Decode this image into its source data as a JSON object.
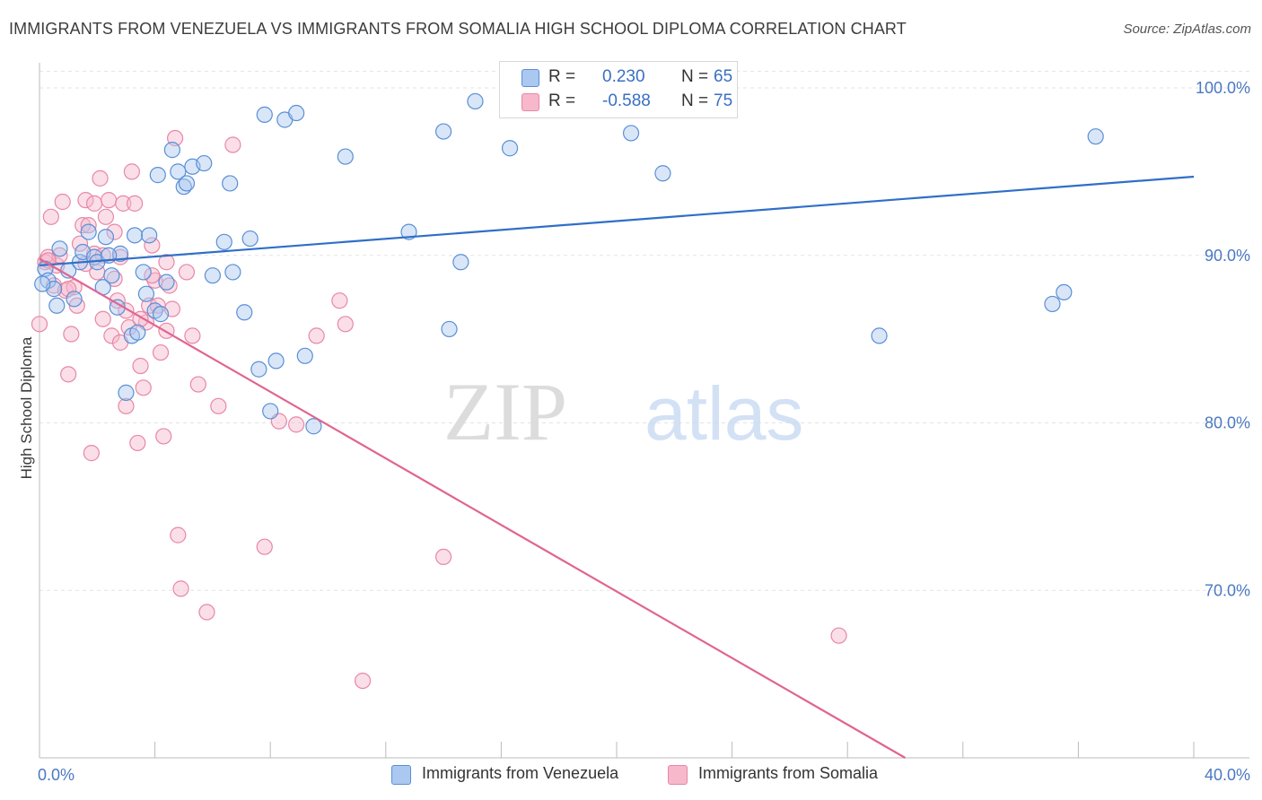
{
  "title": "IMMIGRANTS FROM VENEZUELA VS IMMIGRANTS FROM SOMALIA HIGH SCHOOL DIPLOMA CORRELATION CHART",
  "source": "Source: ZipAtlas.com",
  "watermark": {
    "zip": "ZIP",
    "atlas": "atlas"
  },
  "legend": {
    "rows": [
      {
        "r_label": "R =",
        "r_value": "0.230",
        "n_label": "N =",
        "n_value": "65"
      },
      {
        "r_label": "R =",
        "r_value": "-0.588",
        "n_label": "N =",
        "n_value": "75"
      }
    ]
  },
  "colors": {
    "venezuela_fill": "#aac8f0",
    "venezuela_stroke": "#5a8fd6",
    "venezuela_line": "#2f6fc7",
    "somalia_fill": "#f7b8cc",
    "somalia_stroke": "#e887a6",
    "somalia_line": "#e06592",
    "tick": "#4a78c2",
    "grid": "#e3e3e3"
  },
  "chart_data": {
    "type": "scatter",
    "title": "IMMIGRANTS FROM VENEZUELA VS IMMIGRANTS FROM SOMALIA HIGH SCHOOL DIPLOMA CORRELATION CHART",
    "xlabel": "",
    "ylabel": "High School Diploma",
    "xlim": [
      0,
      40
    ],
    "ylim": [
      60,
      101.5
    ],
    "x_tick_labels": [
      "0.0%",
      "40.0%"
    ],
    "y_ticks": [
      70,
      80,
      90,
      100
    ],
    "y_tick_labels": [
      "70.0%",
      "80.0%",
      "90.0%",
      "100.0%"
    ],
    "grid": true,
    "legend_position": "top-center",
    "series": [
      {
        "name": "Immigrants from Venezuela",
        "r": 0.23,
        "n": 65,
        "trend": {
          "x": [
            0,
            40
          ],
          "y": [
            89.4,
            94.7
          ]
        },
        "points": [
          [
            0.2,
            89.2
          ],
          [
            0.3,
            88.5
          ],
          [
            0.5,
            88.0
          ],
          [
            0.6,
            87.0
          ],
          [
            0.7,
            90.4
          ],
          [
            1.0,
            89.1
          ],
          [
            1.2,
            87.4
          ],
          [
            1.4,
            89.6
          ],
          [
            1.5,
            90.2
          ],
          [
            1.7,
            91.4
          ],
          [
            1.9,
            89.9
          ],
          [
            2.0,
            89.6
          ],
          [
            2.2,
            88.1
          ],
          [
            2.3,
            91.1
          ],
          [
            2.5,
            88.8
          ],
          [
            2.7,
            86.9
          ],
          [
            2.8,
            90.1
          ],
          [
            3.0,
            81.8
          ],
          [
            3.2,
            85.2
          ],
          [
            3.3,
            91.2
          ],
          [
            3.4,
            85.4
          ],
          [
            3.6,
            89.0
          ],
          [
            3.7,
            87.7
          ],
          [
            3.8,
            91.2
          ],
          [
            4.0,
            86.7
          ],
          [
            4.1,
            94.8
          ],
          [
            4.2,
            86.5
          ],
          [
            4.4,
            88.4
          ],
          [
            4.6,
            96.3
          ],
          [
            4.8,
            95.0
          ],
          [
            5.0,
            94.1
          ],
          [
            5.1,
            94.3
          ],
          [
            5.3,
            95.3
          ],
          [
            5.7,
            95.5
          ],
          [
            6.0,
            88.8
          ],
          [
            6.4,
            90.8
          ],
          [
            6.6,
            94.3
          ],
          [
            6.7,
            89.0
          ],
          [
            7.1,
            86.6
          ],
          [
            7.3,
            91.0
          ],
          [
            7.6,
            83.2
          ],
          [
            7.8,
            98.4
          ],
          [
            8.0,
            80.7
          ],
          [
            8.2,
            83.7
          ],
          [
            8.5,
            98.1
          ],
          [
            8.9,
            98.5
          ],
          [
            9.2,
            84.0
          ],
          [
            9.5,
            79.8
          ],
          [
            10.6,
            95.9
          ],
          [
            12.8,
            91.4
          ],
          [
            14.0,
            97.4
          ],
          [
            14.2,
            85.6
          ],
          [
            14.6,
            89.6
          ],
          [
            15.1,
            99.2
          ],
          [
            16.3,
            96.4
          ],
          [
            17.3,
            100.0
          ],
          [
            20.5,
            97.3
          ],
          [
            21.5,
            100.0
          ],
          [
            21.6,
            94.9
          ],
          [
            29.1,
            85.2
          ],
          [
            35.1,
            87.1
          ],
          [
            35.5,
            87.8
          ],
          [
            36.6,
            97.1
          ],
          [
            0.1,
            88.3
          ],
          [
            2.4,
            90.0
          ]
        ]
      },
      {
        "name": "Immigrants from Somalia",
        "r": -0.588,
        "n": 75,
        "trend": {
          "x": [
            0,
            30
          ],
          "y": [
            89.8,
            60.0
          ]
        },
        "points": [
          [
            0.0,
            85.9
          ],
          [
            0.2,
            89.6
          ],
          [
            0.3,
            89.9
          ],
          [
            0.4,
            92.3
          ],
          [
            0.5,
            88.2
          ],
          [
            0.6,
            89.4
          ],
          [
            0.8,
            93.2
          ],
          [
            0.9,
            87.9
          ],
          [
            1.0,
            82.9
          ],
          [
            1.1,
            85.3
          ],
          [
            1.2,
            88.1
          ],
          [
            1.3,
            87.0
          ],
          [
            1.4,
            90.7
          ],
          [
            1.5,
            91.8
          ],
          [
            1.6,
            93.3
          ],
          [
            1.7,
            91.8
          ],
          [
            1.8,
            78.2
          ],
          [
            1.9,
            93.1
          ],
          [
            2.0,
            89.0
          ],
          [
            2.1,
            94.6
          ],
          [
            2.2,
            86.2
          ],
          [
            2.3,
            92.3
          ],
          [
            2.4,
            93.3
          ],
          [
            2.5,
            85.2
          ],
          [
            2.6,
            88.6
          ],
          [
            2.7,
            87.3
          ],
          [
            2.8,
            89.9
          ],
          [
            2.9,
            93.1
          ],
          [
            3.0,
            81.0
          ],
          [
            3.1,
            85.7
          ],
          [
            3.2,
            95.0
          ],
          [
            3.3,
            93.1
          ],
          [
            3.4,
            78.8
          ],
          [
            3.5,
            83.4
          ],
          [
            3.6,
            82.1
          ],
          [
            3.7,
            86.0
          ],
          [
            3.8,
            87.0
          ],
          [
            3.9,
            90.6
          ],
          [
            4.0,
            88.5
          ],
          [
            4.1,
            87.0
          ],
          [
            4.2,
            84.2
          ],
          [
            4.3,
            79.2
          ],
          [
            4.4,
            89.6
          ],
          [
            4.5,
            88.2
          ],
          [
            4.6,
            86.8
          ],
          [
            4.7,
            97.0
          ],
          [
            4.8,
            73.3
          ],
          [
            4.9,
            70.1
          ],
          [
            5.1,
            89.0
          ],
          [
            5.3,
            85.2
          ],
          [
            5.5,
            82.3
          ],
          [
            5.8,
            68.7
          ],
          [
            6.2,
            81.0
          ],
          [
            6.7,
            96.6
          ],
          [
            7.8,
            72.6
          ],
          [
            8.3,
            80.1
          ],
          [
            8.9,
            79.9
          ],
          [
            9.6,
            85.2
          ],
          [
            10.4,
            87.3
          ],
          [
            10.6,
            85.9
          ],
          [
            11.2,
            64.6
          ],
          [
            14.0,
            72.0
          ],
          [
            27.7,
            67.3
          ],
          [
            0.7,
            90.0
          ],
          [
            1.9,
            90.1
          ],
          [
            2.6,
            91.4
          ],
          [
            3.0,
            86.7
          ],
          [
            3.5,
            86.2
          ],
          [
            1.0,
            88.0
          ],
          [
            2.2,
            90.0
          ],
          [
            4.4,
            85.5
          ],
          [
            0.3,
            89.7
          ],
          [
            1.6,
            89.5
          ],
          [
            2.8,
            84.8
          ],
          [
            3.9,
            88.8
          ]
        ]
      }
    ]
  }
}
